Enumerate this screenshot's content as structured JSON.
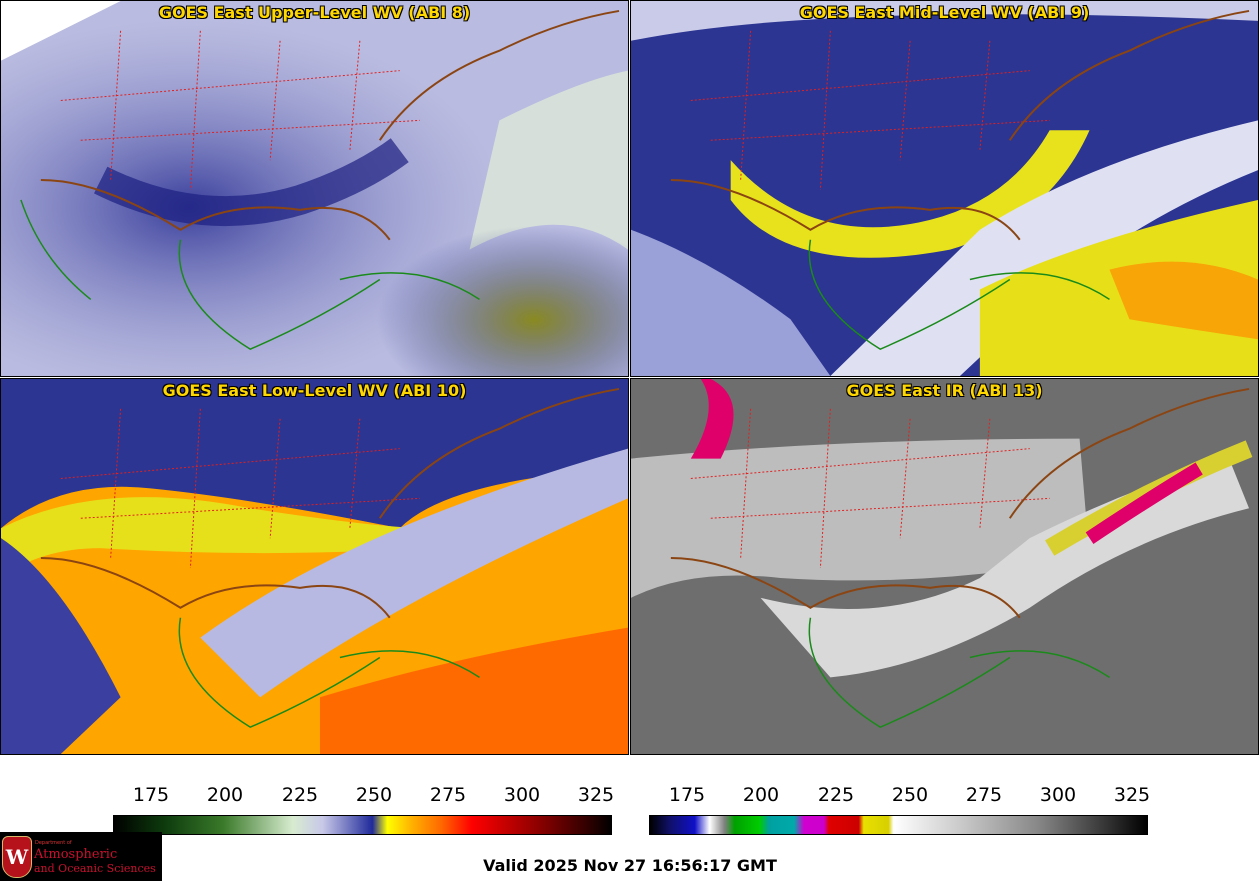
{
  "panels": [
    {
      "title": "GOES East Upper-Level WV (ABI 8)"
    },
    {
      "title": "GOES East Mid-Level WV (ABI 9)"
    },
    {
      "title": "GOES East Low-Level WV (ABI 10)"
    },
    {
      "title": "GOES East IR (ABI 13)"
    }
  ],
  "colorbar_wv": {
    "ticks": [
      "175",
      "200",
      "225",
      "250",
      "275",
      "300",
      "325"
    ]
  },
  "colorbar_ir": {
    "ticks": [
      "175",
      "200",
      "225",
      "250",
      "275",
      "300",
      "325"
    ]
  },
  "valid_time": "Valid 2025 Nov 27 16:56:17 GMT",
  "logo": {
    "dept_line": "Department of",
    "name_line1": "Atmospheric",
    "name_line2": "and Oceanic Sciences",
    "seal_letter": "W"
  },
  "colors": {
    "title": "#ffd700",
    "state_borders": "#e02020",
    "coastlines": "#1a8a1a",
    "us_outline": "#8b4513"
  }
}
